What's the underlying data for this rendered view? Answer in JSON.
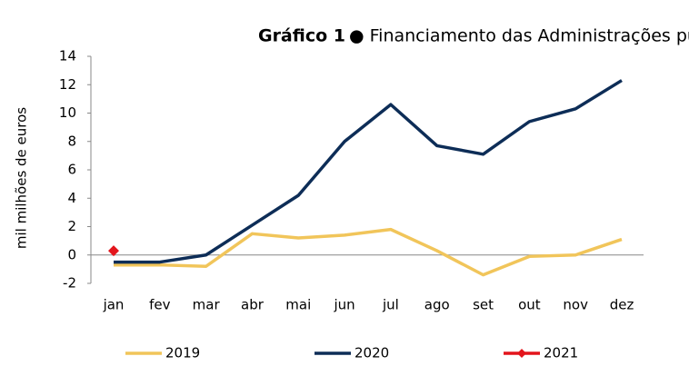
{
  "chart_data": {
    "type": "line",
    "title_prefix": "Gráfico 1",
    "title": "● Financiamento das Administrações públicas",
    "ylabel": "mil milhões de euros",
    "categories": [
      "jan",
      "fev",
      "mar",
      "abr",
      "mai",
      "jun",
      "jul",
      "ago",
      "set",
      "out",
      "nov",
      "dez"
    ],
    "series": [
      {
        "name": "2019",
        "color": "#f1c55a",
        "values": [
          -0.7,
          -0.7,
          -0.8,
          1.5,
          1.2,
          1.4,
          1.8,
          0.3,
          -1.4,
          -0.1,
          0.0,
          1.1
        ]
      },
      {
        "name": "2020",
        "color": "#0d2d57",
        "values": [
          -0.5,
          -0.5,
          0.0,
          2.1,
          4.2,
          8.0,
          10.6,
          7.7,
          7.1,
          9.4,
          10.3,
          12.3
        ]
      },
      {
        "name": "2021",
        "color": "#e3151c",
        "marker": "diamond",
        "values": [
          0.3,
          null,
          null,
          null,
          null,
          null,
          null,
          null,
          null,
          null,
          null,
          null
        ]
      }
    ],
    "ylim": [
      -2,
      14
    ],
    "yticks": [
      -2,
      0,
      2,
      4,
      6,
      8,
      10,
      12,
      14
    ],
    "grid": false,
    "legend": "bottom"
  }
}
